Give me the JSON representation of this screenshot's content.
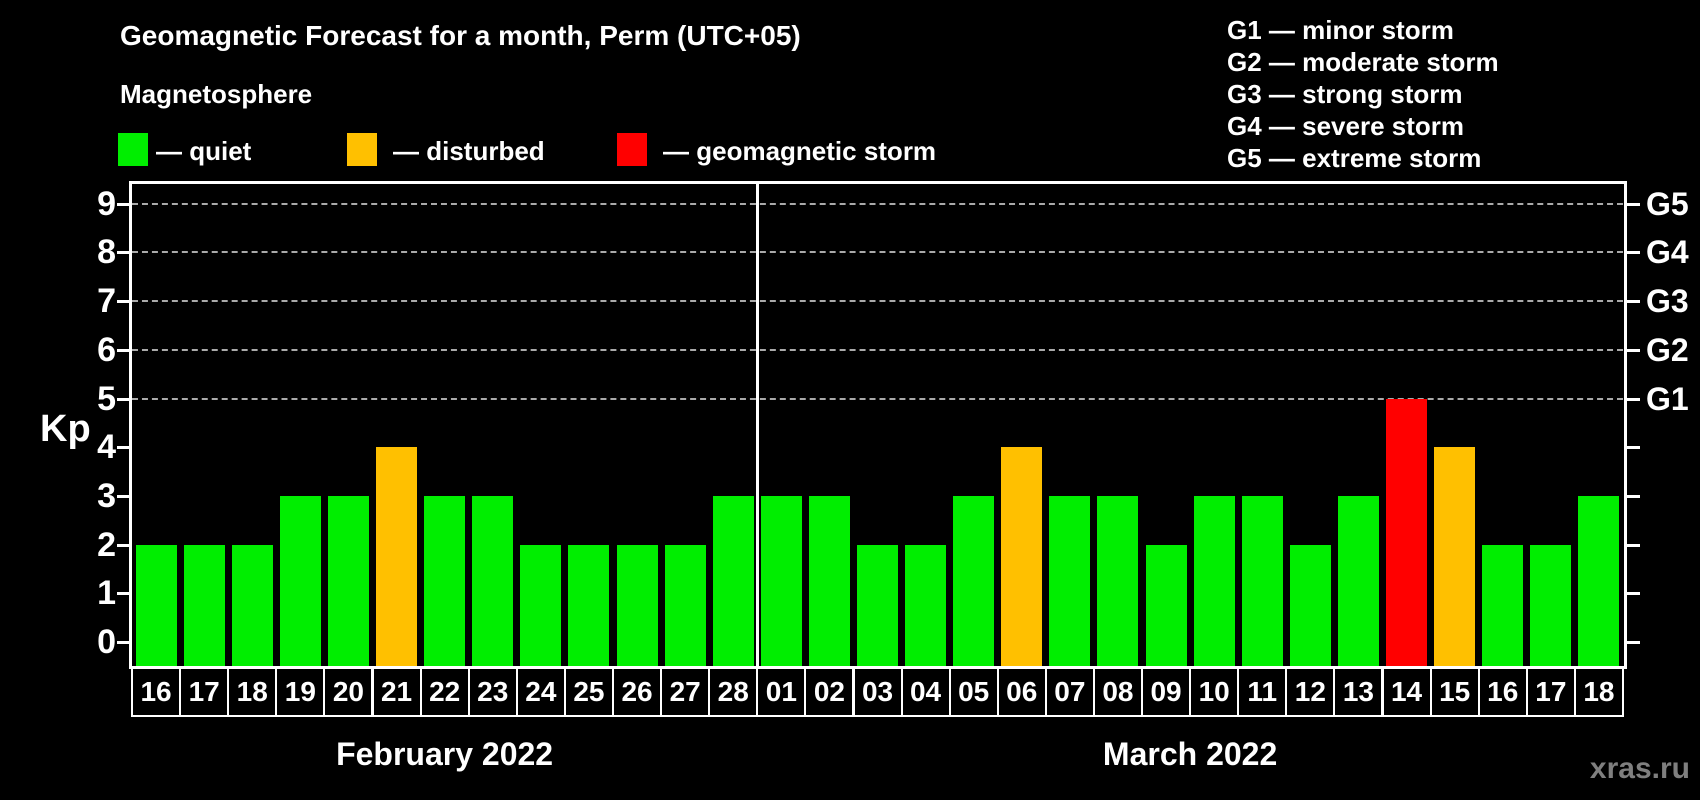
{
  "title": "Geomagnetic Forecast for a month, Perm (UTC+05)",
  "subtitle": "Magnetosphere",
  "watermark": "xras.ru",
  "legend": {
    "items": [
      {
        "status": "quiet",
        "label": "— quiet",
        "color": "#00ee00"
      },
      {
        "status": "disturbed",
        "label": "— disturbed",
        "color": "#ffc000"
      },
      {
        "status": "storm",
        "label": "— geomagnetic storm",
        "color": "#ff0000"
      }
    ]
  },
  "storm_scale_legend": [
    "G1 — minor storm",
    "G2 — moderate storm",
    "G3 — strong storm",
    "G4 — severe storm",
    "G5 — extreme storm"
  ],
  "chart_data": {
    "type": "bar",
    "title": "Geomagnetic Forecast for a month, Perm (UTC+05)",
    "ylabel": "Kp",
    "ylim": [
      0,
      9
    ],
    "y_ticks": [
      0,
      1,
      2,
      3,
      4,
      5,
      6,
      7,
      8,
      9
    ],
    "grid_levels": [
      5,
      6,
      7,
      8,
      9
    ],
    "legend_position": "top",
    "right_axis_labels": [
      {
        "label": "G1",
        "kp": 5
      },
      {
        "label": "G2",
        "kp": 6
      },
      {
        "label": "G3",
        "kp": 7
      },
      {
        "label": "G4",
        "kp": 8
      },
      {
        "label": "G5",
        "kp": 9
      }
    ],
    "status_colors": {
      "quiet": "#00ee00",
      "disturbed": "#ffc000",
      "storm": "#ff0000"
    },
    "months": [
      {
        "label": "February 2022",
        "days": [
          {
            "day": "16",
            "kp": 2,
            "status": "quiet"
          },
          {
            "day": "17",
            "kp": 2,
            "status": "quiet"
          },
          {
            "day": "18",
            "kp": 2,
            "status": "quiet"
          },
          {
            "day": "19",
            "kp": 3,
            "status": "quiet"
          },
          {
            "day": "20",
            "kp": 3,
            "status": "quiet"
          },
          {
            "day": "21",
            "kp": 4,
            "status": "disturbed"
          },
          {
            "day": "22",
            "kp": 3,
            "status": "quiet"
          },
          {
            "day": "23",
            "kp": 3,
            "status": "quiet"
          },
          {
            "day": "24",
            "kp": 2,
            "status": "quiet"
          },
          {
            "day": "25",
            "kp": 2,
            "status": "quiet"
          },
          {
            "day": "26",
            "kp": 2,
            "status": "quiet"
          },
          {
            "day": "27",
            "kp": 2,
            "status": "quiet"
          },
          {
            "day": "28",
            "kp": 3,
            "status": "quiet"
          }
        ]
      },
      {
        "label": "March 2022",
        "days": [
          {
            "day": "01",
            "kp": 3,
            "status": "quiet"
          },
          {
            "day": "02",
            "kp": 3,
            "status": "quiet"
          },
          {
            "day": "03",
            "kp": 2,
            "status": "quiet"
          },
          {
            "day": "04",
            "kp": 2,
            "status": "quiet"
          },
          {
            "day": "05",
            "kp": 3,
            "status": "quiet"
          },
          {
            "day": "06",
            "kp": 4,
            "status": "disturbed"
          },
          {
            "day": "07",
            "kp": 3,
            "status": "quiet"
          },
          {
            "day": "08",
            "kp": 3,
            "status": "quiet"
          },
          {
            "day": "09",
            "kp": 2,
            "status": "quiet"
          },
          {
            "day": "10",
            "kp": 3,
            "status": "quiet"
          },
          {
            "day": "11",
            "kp": 3,
            "status": "quiet"
          },
          {
            "day": "12",
            "kp": 2,
            "status": "quiet"
          },
          {
            "day": "13",
            "kp": 3,
            "status": "quiet"
          },
          {
            "day": "14",
            "kp": 5,
            "status": "storm"
          },
          {
            "day": "15",
            "kp": 4,
            "status": "disturbed"
          },
          {
            "day": "16",
            "kp": 2,
            "status": "quiet"
          },
          {
            "day": "17",
            "kp": 2,
            "status": "quiet"
          },
          {
            "day": "18",
            "kp": 3,
            "status": "quiet"
          }
        ]
      }
    ]
  }
}
